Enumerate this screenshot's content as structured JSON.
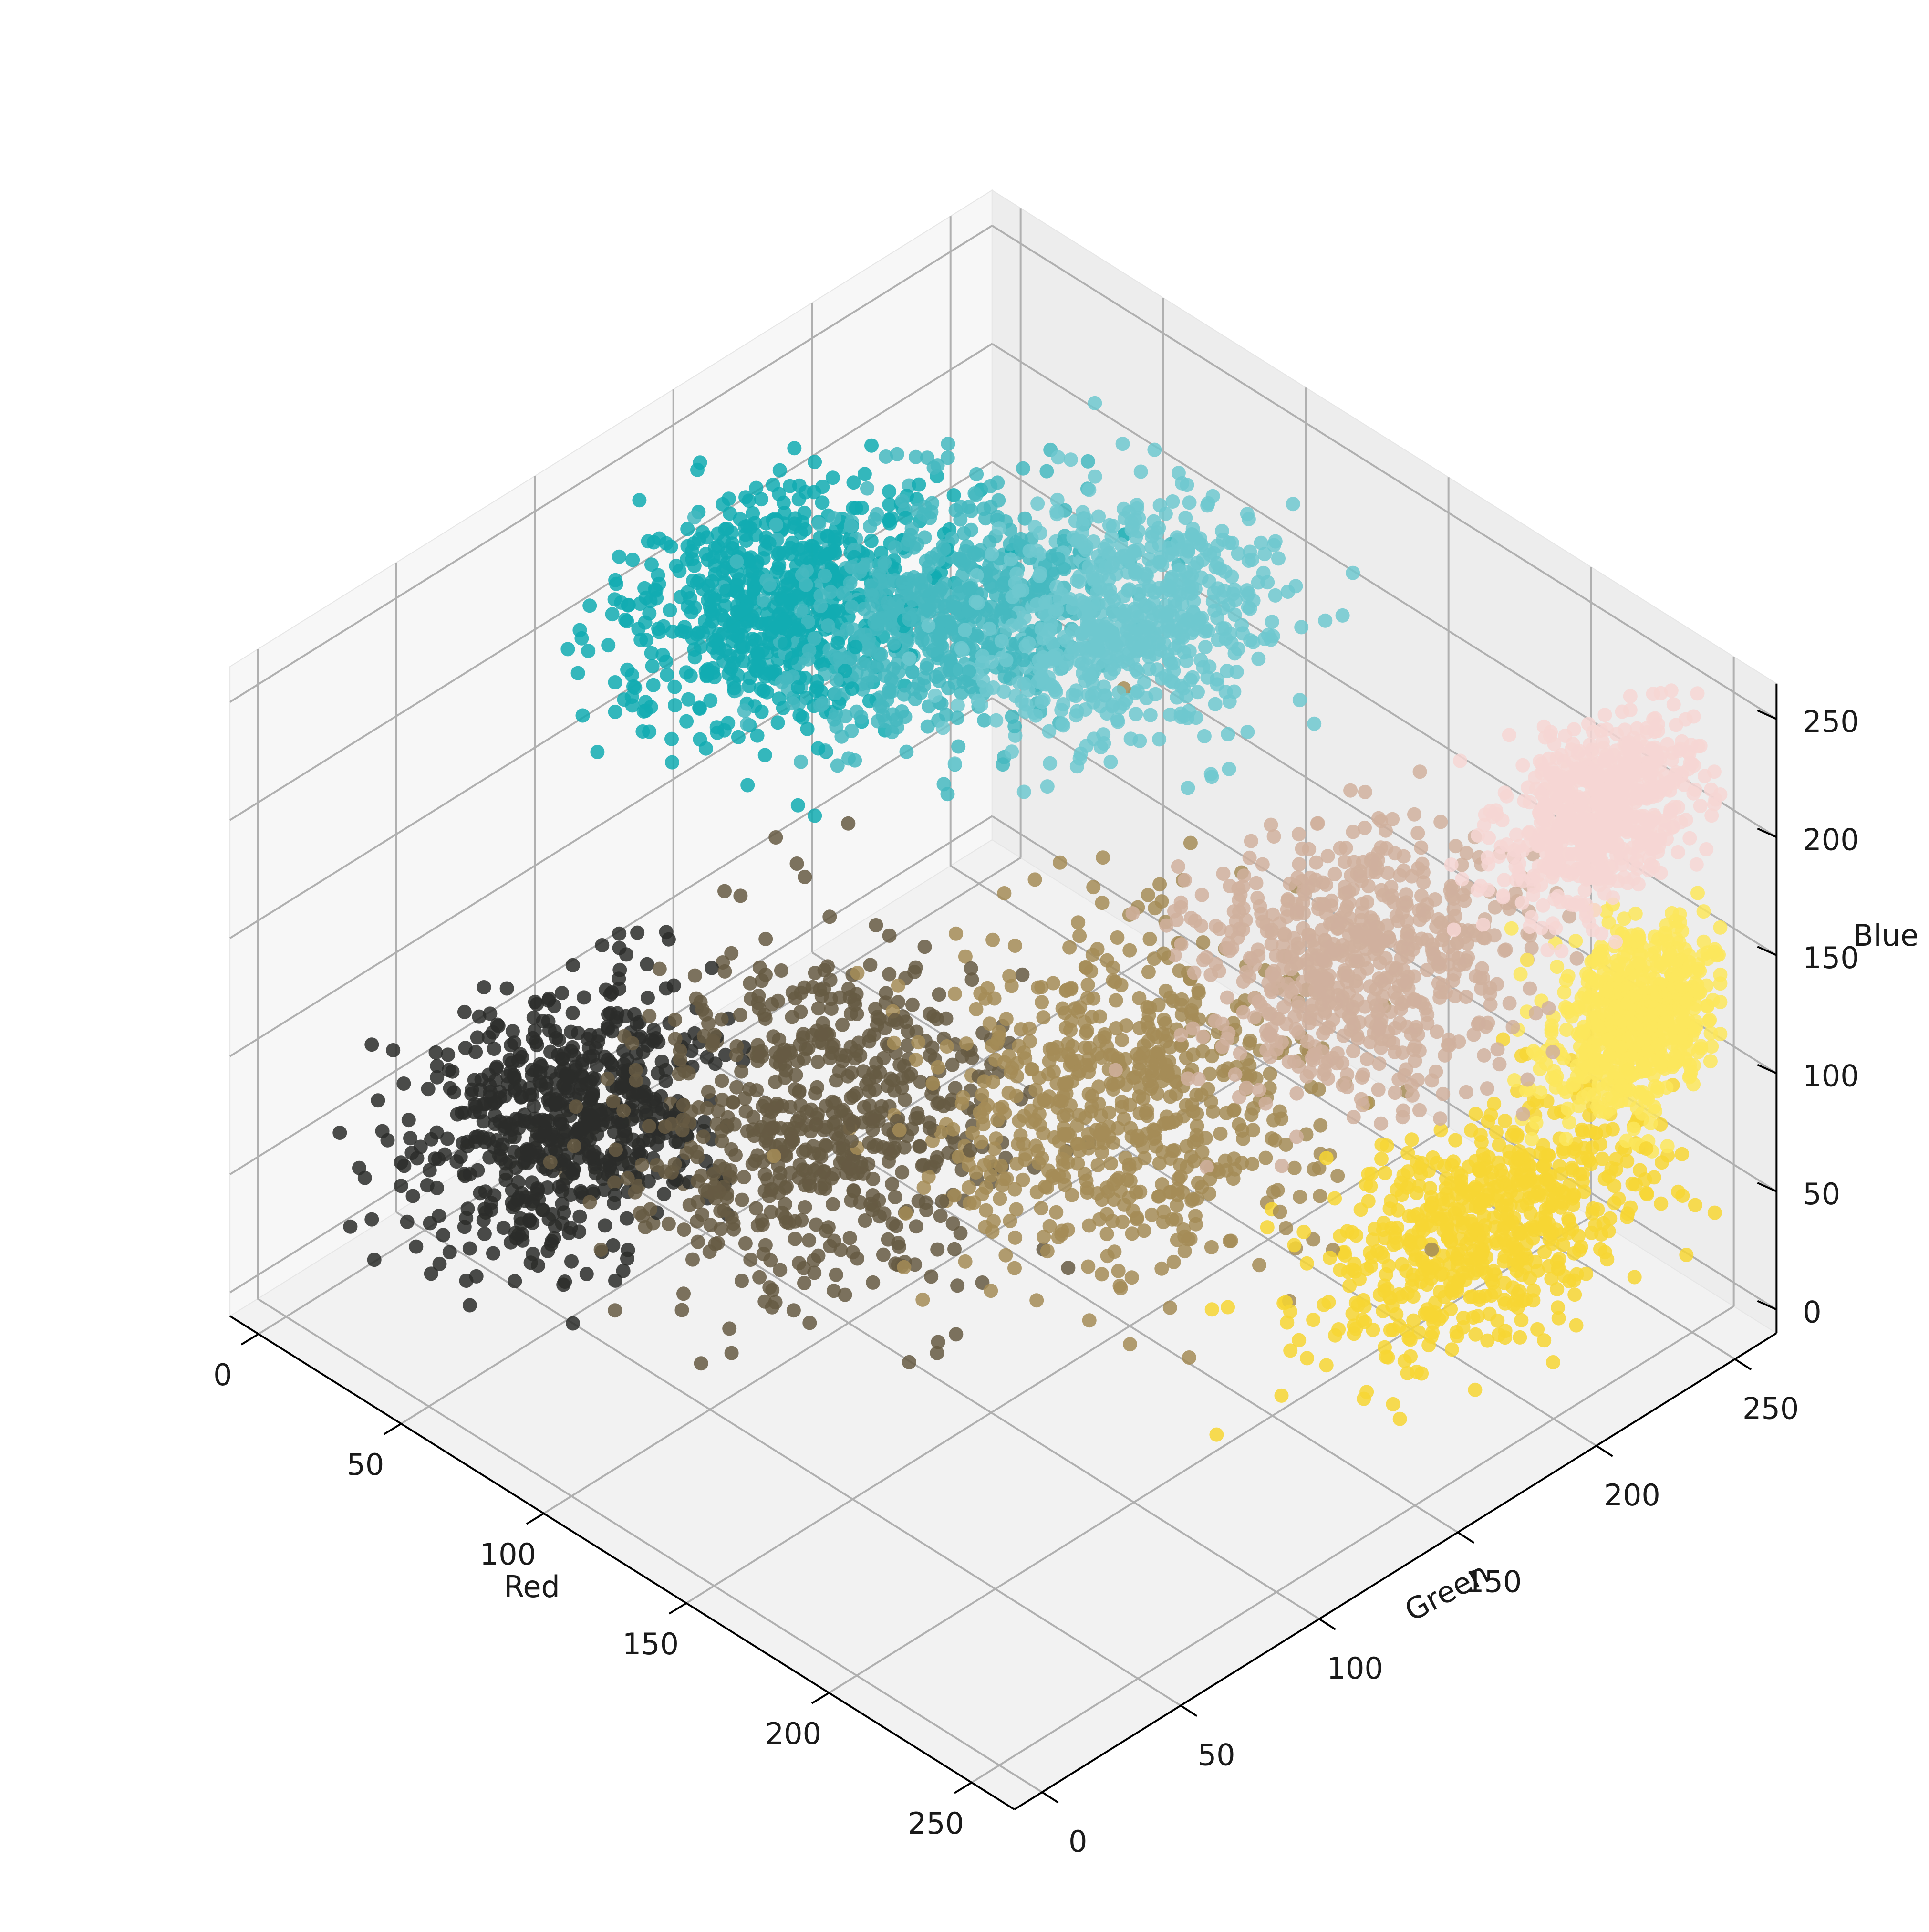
{
  "chart_data": {
    "type": "scatter",
    "projection": "3d",
    "title": "",
    "xlabel": "Red",
    "ylabel": "Green",
    "zlabel": "Blue",
    "xlim": [
      0,
      255
    ],
    "ylim": [
      0,
      255
    ],
    "zlim": [
      0,
      255
    ],
    "xticks": [
      0,
      50,
      100,
      150,
      200,
      250
    ],
    "yticks": [
      0,
      50,
      100,
      150,
      200,
      250
    ],
    "zticks": [
      0,
      50,
      100,
      150,
      200,
      250
    ],
    "grid": true,
    "legend": "none",
    "clusters": [
      {
        "color": "#2b2d2a",
        "center": [
          30,
          70,
          45
        ],
        "spread": [
          28,
          38,
          38
        ]
      },
      {
        "color": "#665b43",
        "center": [
          85,
          105,
          60
        ],
        "spread": [
          40,
          48,
          48
        ]
      },
      {
        "color": "#a58c57",
        "center": [
          150,
          145,
          90
        ],
        "spread": [
          45,
          45,
          45
        ]
      },
      {
        "color": "#f7d634",
        "center": [
          230,
          195,
          60
        ],
        "spread": [
          25,
          50,
          30
        ]
      },
      {
        "color": "#fbe65c",
        "center": [
          245,
          235,
          130
        ],
        "spread": [
          15,
          25,
          30
        ]
      },
      {
        "color": "#d0b09e",
        "center": [
          205,
          175,
          165
        ],
        "spread": [
          35,
          40,
          35
        ]
      },
      {
        "color": "#f6d6d3",
        "center": [
          242,
          225,
          222
        ],
        "spread": [
          15,
          30,
          28
        ]
      },
      {
        "color": "#12abb2",
        "center": [
          25,
          150,
          200
        ],
        "spread": [
          30,
          40,
          30
        ]
      },
      {
        "color": "#45b8c0",
        "center": [
          60,
          175,
          205
        ],
        "spread": [
          30,
          40,
          30
        ]
      },
      {
        "color": "#6fc8cf",
        "center": [
          100,
          200,
          215
        ],
        "spread": [
          30,
          40,
          30
        ]
      }
    ]
  }
}
